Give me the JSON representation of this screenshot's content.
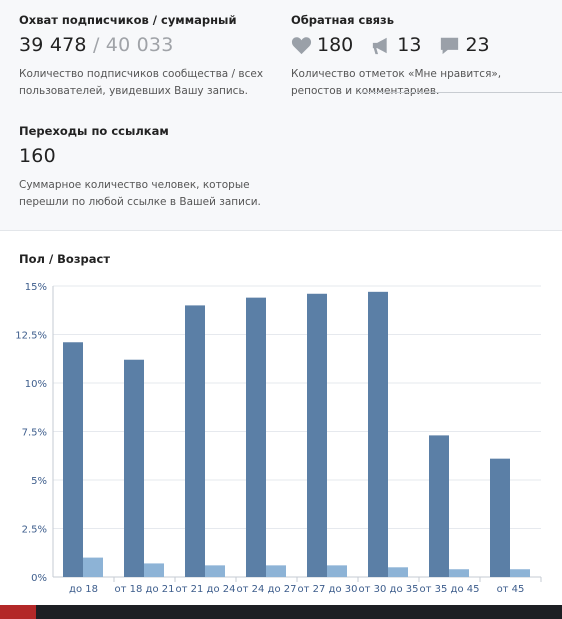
{
  "reach": {
    "title": "Охват подписчиков / суммарный",
    "subscribers": "39 478",
    "separator": "/",
    "total": "40 033",
    "description": "Количество подписчиков сообщества / всех пользователей, увидевших Вашу запись."
  },
  "feedback": {
    "title": "Обратная связь",
    "likes": "180",
    "reposts": "13",
    "comments": "23",
    "icons": [
      "heart-icon",
      "megaphone-icon",
      "comment-icon"
    ],
    "description": "Количество отметок «Мне нравится», репостов и комментариев."
  },
  "links": {
    "title": "Переходы по ссылкам",
    "value": "160",
    "description": "Суммарное количество человек, которые перешли по любой ссылке в Вашей записи."
  },
  "chart_data": {
    "type": "bar",
    "title": "Пол / Возраст",
    "categories": [
      "до 18",
      "от 18 до 21",
      "от 21 до 24",
      "от 24 до 27",
      "от 27 до 30",
      "от 30 до 35",
      "от 35 до 45",
      "от 45"
    ],
    "series": [
      {
        "values": [
          12.1,
          11.2,
          14.0,
          14.4,
          14.6,
          14.7,
          7.3,
          6.1
        ],
        "color": "#5b7fa6"
      },
      {
        "values": [
          1.0,
          0.7,
          0.6,
          0.6,
          0.6,
          0.5,
          0.4,
          0.4
        ],
        "color": "#8db3d6"
      }
    ],
    "yticks": [
      "0%",
      "2.5%",
      "5%",
      "7.5%",
      "10%",
      "12.5%",
      "15%"
    ],
    "ylim": [
      0,
      15
    ],
    "grid": true,
    "colors": {
      "grid": "#e6e9ee",
      "axis": "#c5cbd3",
      "plot_bg": "#ffffff"
    }
  }
}
